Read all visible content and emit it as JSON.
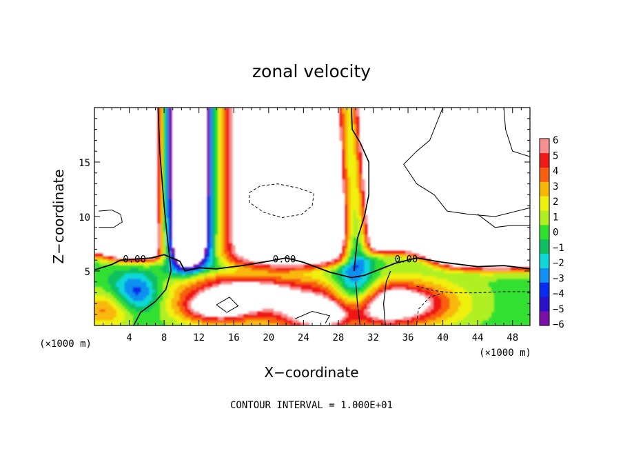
{
  "chart_data": {
    "type": "heatmap",
    "title": "zonal velocity",
    "xlabel": "X−coordinate",
    "ylabel": "Z−coordinate",
    "x_unit": "(×1000 m)",
    "y_unit": "(×1000 m)",
    "xlim": [
      0,
      50
    ],
    "ylim": [
      0,
      20
    ],
    "x_ticks": [
      4,
      8,
      12,
      16,
      20,
      24,
      28,
      32,
      36,
      40,
      44,
      48
    ],
    "x_tick_labels": [
      "4",
      "8",
      "12",
      "16",
      "20",
      "24",
      "28",
      "32",
      "36",
      "40",
      "44",
      "48"
    ],
    "y_ticks": [
      5,
      10,
      15
    ],
    "y_tick_labels": [
      "5",
      "10",
      "15"
    ],
    "colorbar": {
      "min": -6,
      "max": 6,
      "labels": [
        "6",
        "5",
        "4",
        "3",
        "2",
        "1",
        "0",
        "−1",
        "−2",
        "−3",
        "−4",
        "−5",
        "−6"
      ],
      "out_of_range": "blank"
    },
    "contour_labels": [
      {
        "text": "0.00",
        "x": 4.6,
        "z": 6.1
      },
      {
        "text": "0.00",
        "x": 21.8,
        "z": 6.1
      },
      {
        "text": "0.00",
        "x": 35.8,
        "z": 6.1
      }
    ],
    "footnote": "CONTOUR INTERVAL = 1.000E+01"
  }
}
